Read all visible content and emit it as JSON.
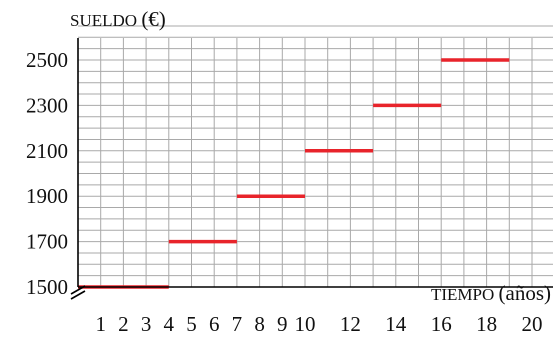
{
  "chart_data": {
    "type": "line",
    "title": "",
    "ylabel": "SUELDO (€)",
    "xlabel": "TIEMPO (años)",
    "x_range": [
      0,
      21
    ],
    "y_range": [
      1500,
      2650
    ],
    "y_axis_break": true,
    "grid": true,
    "x_ticks": [
      {
        "value": 1,
        "label": "1"
      },
      {
        "value": 2,
        "label": "2"
      },
      {
        "value": 3,
        "label": "3"
      },
      {
        "value": 4,
        "label": "4"
      },
      {
        "value": 5,
        "label": "5"
      },
      {
        "value": 6,
        "label": "6"
      },
      {
        "value": 7,
        "label": "7"
      },
      {
        "value": 8,
        "label": "8"
      },
      {
        "value": 9,
        "label": "9"
      },
      {
        "value": 10,
        "label": "10"
      },
      {
        "value": 12,
        "label": "12"
      },
      {
        "value": 14,
        "label": "14"
      },
      {
        "value": 16,
        "label": "16"
      },
      {
        "value": 18,
        "label": "18"
      },
      {
        "value": 20,
        "label": "20"
      }
    ],
    "y_ticks": [
      {
        "value": 1500,
        "label": "1500"
      },
      {
        "value": 1700,
        "label": "1700"
      },
      {
        "value": 1900,
        "label": "1900"
      },
      {
        "value": 2100,
        "label": "2100"
      },
      {
        "value": 2300,
        "label": "2300"
      },
      {
        "value": 2500,
        "label": "2500"
      }
    ],
    "series": [
      {
        "color": "#e8242b",
        "segments": [
          {
            "x_start": 0,
            "x_end": 4,
            "y": 1500
          },
          {
            "x_start": 4,
            "x_end": 7,
            "y": 1700
          },
          {
            "x_start": 7,
            "x_end": 10,
            "y": 1900
          },
          {
            "x_start": 10,
            "x_end": 13,
            "y": 2100
          },
          {
            "x_start": 13,
            "x_end": 16,
            "y": 2300
          },
          {
            "x_start": 16,
            "x_end": 19,
            "y": 2500
          }
        ]
      }
    ]
  }
}
